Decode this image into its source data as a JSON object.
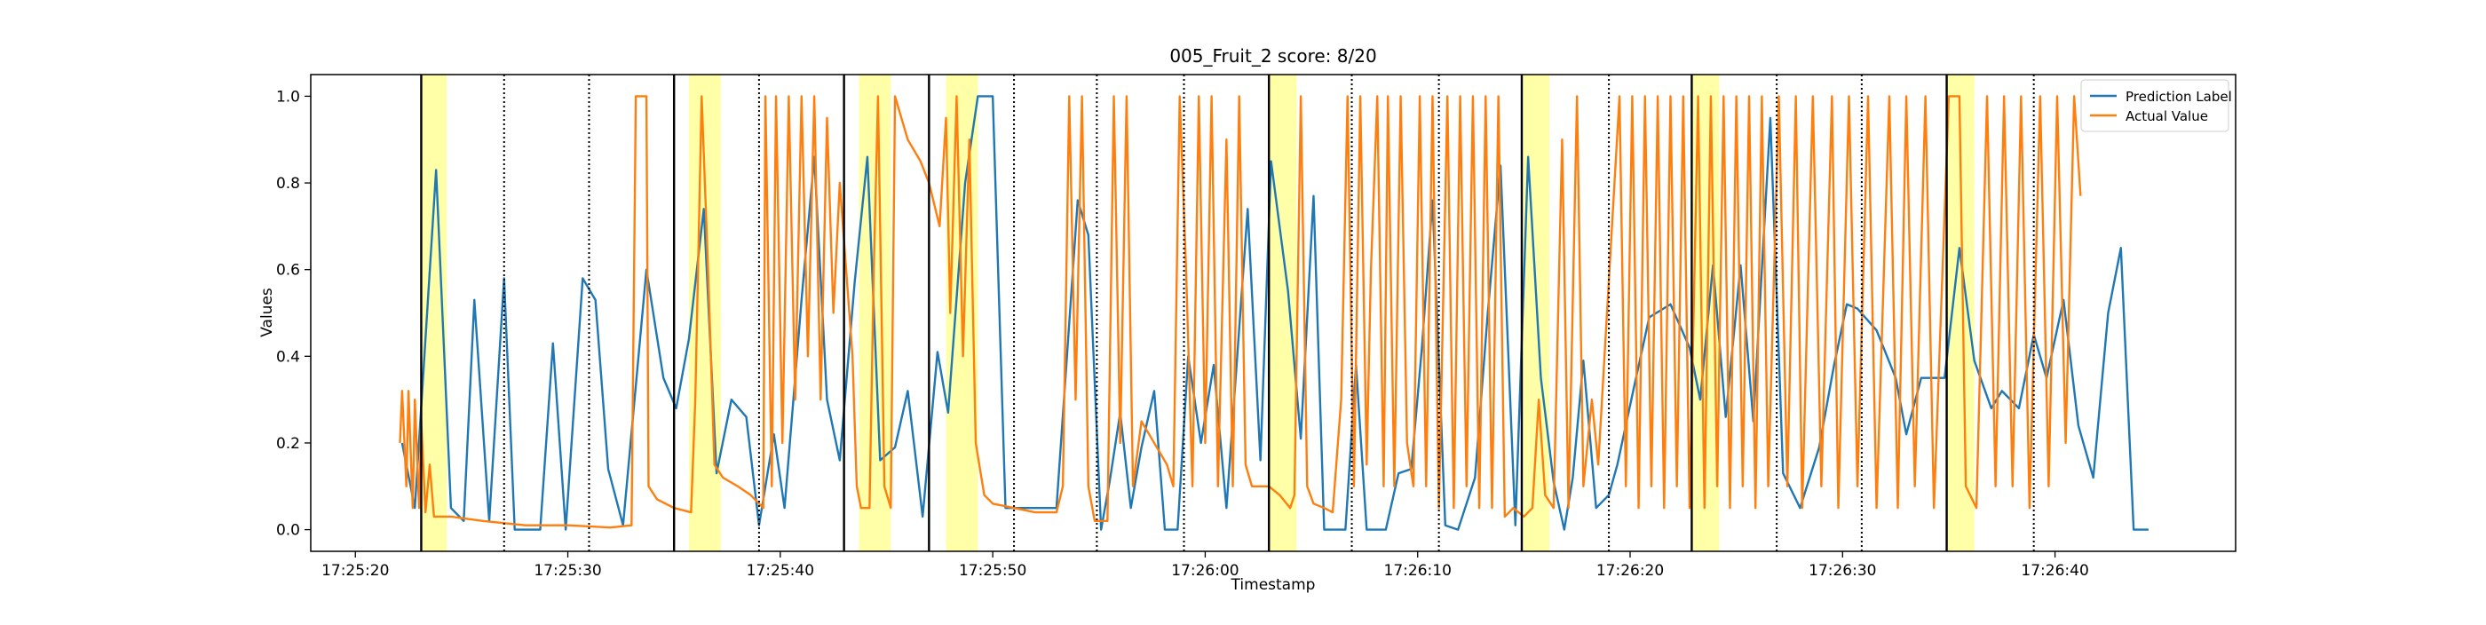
{
  "chart_data": {
    "type": "line",
    "title": "005_Fruit_2 score: 8/20",
    "xlabel": "Timestamp",
    "ylabel": "Values",
    "xlim": [
      "17:25:17.9",
      "17:26:48.5"
    ],
    "xticks": [
      "17:25:20",
      "17:25:30",
      "17:25:40",
      "17:25:50",
      "17:26:00",
      "17:26:10",
      "17:26:20",
      "17:26:30",
      "17:26:40"
    ],
    "ylim": [
      -0.05,
      1.05
    ],
    "yticks": [
      {
        "value": 0,
        "label": "0.0"
      },
      {
        "value": 0.2,
        "label": "0.2"
      },
      {
        "value": 0.4,
        "label": "0.4"
      },
      {
        "value": 0.6,
        "label": "0.6"
      },
      {
        "value": 0.8,
        "label": "0.8"
      },
      {
        "value": 1,
        "label": "1.0"
      }
    ],
    "legend": "upper right",
    "highlight_color": "#ffffa8",
    "spans": [
      [
        "17:25:23.1",
        "17:25:24.3"
      ],
      [
        "17:25:35.7",
        "17:25:37.2"
      ],
      [
        "17:25:43.7",
        "17:25:45.2"
      ],
      [
        "17:25:47.8",
        "17:25:49.3"
      ],
      [
        "17:26:03.0",
        "17:26:04.3"
      ],
      [
        "17:26:14.9",
        "17:26:16.2"
      ],
      [
        "17:26:22.9",
        "17:26:24.2"
      ],
      [
        "17:26:34.9",
        "17:26:36.2"
      ]
    ],
    "solid_lines": [
      "17:25:23.1",
      "17:25:35.0",
      "17:25:43.0",
      "17:25:47.0",
      "17:26:03.0",
      "17:26:14.9",
      "17:26:22.9",
      "17:26:34.9"
    ],
    "dotted_lines": [
      "17:25:27.0",
      "17:25:31.0",
      "17:25:39.0",
      "17:25:51.0",
      "17:25:54.9",
      "17:25:59.0",
      "17:26:06.9",
      "17:26:11.0",
      "17:26:19.0",
      "17:26:26.9",
      "17:26:30.9",
      "17:26:39.0"
    ],
    "series": [
      {
        "name": "Prediction Label",
        "color": "#1f77b4",
        "x": [
          "17:25:22.2",
          "17:25:22.8",
          "17:25:23.8",
          "17:25:24.5",
          "17:25:25.1",
          "17:25:25.6",
          "17:25:26.3",
          "17:25:27.0",
          "17:25:27.5",
          "17:25:28.7",
          "17:25:29.3",
          "17:25:29.9",
          "17:25:30.7",
          "17:25:31.3",
          "17:25:31.9",
          "17:25:32.6",
          "17:25:33.7",
          "17:25:34.5",
          "17:25:35.1",
          "17:25:35.7",
          "17:25:36.4",
          "17:25:37.0",
          "17:25:37.7",
          "17:25:38.4",
          "17:25:39.0",
          "17:25:39.7",
          "17:25:40.2",
          "17:25:41.0",
          "17:25:41.6",
          "17:25:42.2",
          "17:25:42.8",
          "17:25:43.5",
          "17:25:44.1",
          "17:25:44.7",
          "17:25:45.4",
          "17:25:46.0",
          "17:25:46.7",
          "17:25:47.4",
          "17:25:47.9",
          "17:25:48.7",
          "17:25:49.3",
          "17:25:50.0",
          "17:25:50.6",
          "17:25:51.2",
          "17:25:53.0",
          "17:25:54.0",
          "17:25:54.5",
          "17:25:55.1",
          "17:25:55.5",
          "17:25:56.0",
          "17:25:56.5",
          "17:25:57.0",
          "17:25:57.6",
          "17:25:58.1",
          "17:25:58.7",
          "17:25:59.2",
          "17:25:59.8",
          "17:26:00.4",
          "17:26:01.0",
          "17:26:02.0",
          "17:26:02.6",
          "17:26:03.1",
          "17:26:03.9",
          "17:26:04.5",
          "17:26:05.1",
          "17:26:05.6",
          "17:26:06.6",
          "17:26:07.1",
          "17:26:07.6",
          "17:26:08.5",
          "17:26:09.1",
          "17:26:09.7",
          "17:26:10.2",
          "17:26:10.7",
          "17:26:11.3",
          "17:26:11.9",
          "17:26:12.7",
          "17:26:13.3",
          "17:26:13.9",
          "17:26:14.6",
          "17:26:15.2",
          "17:26:15.8",
          "17:26:16.4",
          "17:26:16.9",
          "17:26:17.3",
          "17:26:17.8",
          "17:26:18.4",
          "17:26:19.0",
          "17:26:19.4",
          "17:26:20.1",
          "17:26:20.9",
          "17:26:21.9",
          "17:26:22.8",
          "17:26:23.3",
          "17:26:23.9",
          "17:26:24.5",
          "17:26:25.2",
          "17:26:25.8",
          "17:26:26.6",
          "17:26:27.2",
          "17:26:28.0",
          "17:26:28.9",
          "17:26:29.6",
          "17:26:30.2",
          "17:26:30.7",
          "17:26:31.6",
          "17:26:32.5",
          "17:26:33.0",
          "17:26:33.7",
          "17:26:34.8",
          "17:26:35.5",
          "17:26:36.2",
          "17:26:37.0",
          "17:26:37.5",
          "17:26:38.3",
          "17:26:39.0",
          "17:26:39.6",
          "17:26:40.4",
          "17:26:41.1",
          "17:26:41.8",
          "17:26:42.5",
          "17:26:43.1",
          "17:26:43.7",
          "17:26:44.4"
        ],
        "values": [
          0.2,
          0.05,
          0.83,
          0.05,
          0.02,
          0.53,
          0.02,
          0.58,
          0.0,
          0.0,
          0.43,
          0.0,
          0.58,
          0.53,
          0.14,
          0.01,
          0.6,
          0.35,
          0.28,
          0.44,
          0.74,
          0.13,
          0.3,
          0.26,
          0.01,
          0.22,
          0.05,
          0.53,
          0.86,
          0.3,
          0.16,
          0.57,
          0.86,
          0.16,
          0.19,
          0.32,
          0.03,
          0.41,
          0.27,
          0.8,
          1.0,
          1.0,
          0.05,
          0.05,
          0.05,
          0.76,
          0.68,
          0.0,
          0.11,
          0.27,
          0.05,
          0.19,
          0.32,
          0.0,
          0.0,
          0.4,
          0.2,
          0.38,
          0.05,
          0.74,
          0.16,
          0.85,
          0.55,
          0.21,
          0.77,
          0.0,
          0.0,
          0.38,
          0.0,
          0.0,
          0.13,
          0.14,
          0.42,
          0.76,
          0.01,
          0.0,
          0.12,
          0.5,
          0.84,
          0.01,
          0.86,
          0.35,
          0.11,
          0.0,
          0.12,
          0.39,
          0.05,
          0.08,
          0.15,
          0.31,
          0.49,
          0.52,
          0.42,
          0.3,
          0.61,
          0.26,
          0.61,
          0.25,
          0.95,
          0.13,
          0.05,
          0.19,
          0.38,
          0.52,
          0.51,
          0.46,
          0.35,
          0.22,
          0.35,
          0.35,
          0.65,
          0.39,
          0.28,
          0.32,
          0.28,
          0.45,
          0.35,
          0.53,
          0.24,
          0.12,
          0.5,
          0.65,
          0.0,
          0.0
        ]
      },
      {
        "name": "Actual Value",
        "color": "#ff7f0e",
        "x": [
          "17:25:22.1",
          "17:25:22.2",
          "17:25:22.4",
          "17:25:22.5",
          "17:25:22.7",
          "17:25:22.8",
          "17:25:23.0",
          "17:25:23.1",
          "17:25:23.3",
          "17:25:23.5",
          "17:25:23.7",
          "17:25:24.5",
          "17:25:26.0",
          "17:25:28.0",
          "17:25:30.0",
          "17:25:32.0",
          "17:25:33.0",
          "17:25:33.2",
          "17:25:33.7",
          "17:25:33.8",
          "17:25:34.2",
          "17:25:35.0",
          "17:25:35.8",
          "17:25:36.0",
          "17:25:36.3",
          "17:25:36.6",
          "17:25:36.9",
          "17:25:37.3",
          "17:25:38.0",
          "17:25:38.6",
          "17:25:39.2",
          "17:25:39.3",
          "17:25:39.6",
          "17:25:39.8",
          "17:25:40.1",
          "17:25:40.4",
          "17:25:40.7",
          "17:25:41.0",
          "17:25:41.3",
          "17:25:41.6",
          "17:25:41.9",
          "17:25:42.2",
          "17:25:42.5",
          "17:25:42.8",
          "17:25:43.1",
          "17:25:43.4",
          "17:25:43.6",
          "17:25:43.8",
          "17:25:44.2",
          "17:25:44.4",
          "17:25:44.6",
          "17:25:44.9",
          "17:25:45.2",
          "17:25:45.4",
          "17:25:46.0",
          "17:25:46.6",
          "17:25:47.0",
          "17:25:47.5",
          "17:25:47.8",
          "17:25:48.0",
          "17:25:48.3",
          "17:25:48.6",
          "17:25:48.9",
          "17:25:49.2",
          "17:25:49.6",
          "17:25:50.0",
          "17:25:51.0",
          "17:25:52.0",
          "17:25:53.0",
          "17:25:53.3",
          "17:25:53.6",
          "17:25:53.9",
          "17:25:54.2",
          "17:25:54.5",
          "17:25:54.8",
          "17:25:55.4",
          "17:25:55.7",
          "17:25:56.0",
          "17:25:56.3",
          "17:25:56.6",
          "17:25:57.0",
          "17:25:57.6",
          "17:25:58.2",
          "17:25:58.5",
          "17:25:58.8",
          "17:25:59.1",
          "17:25:59.4",
          "17:25:59.7",
          "17:26:00.0",
          "17:26:00.3",
          "17:26:00.6",
          "17:26:01.0",
          "17:26:01.3",
          "17:26:01.6",
          "17:26:01.9",
          "17:26:02.2",
          "17:26:03.0",
          "17:26:03.5",
          "17:26:04.0",
          "17:26:04.2",
          "17:26:04.5",
          "17:26:04.8",
          "17:26:05.1",
          "17:26:05.6",
          "17:26:06.0",
          "17:26:06.4",
          "17:26:06.7",
          "17:26:07.0",
          "17:26:07.3",
          "17:26:07.6",
          "17:26:07.8",
          "17:26:08.1",
          "17:26:08.4",
          "17:26:08.6",
          "17:26:08.9",
          "17:26:09.2",
          "17:26:09.5",
          "17:26:09.8",
          "17:26:10.1",
          "17:26:10.4",
          "17:26:10.7",
          "17:26:11.0",
          "17:26:11.4",
          "17:26:11.7",
          "17:26:12.0",
          "17:26:12.3",
          "17:26:12.6",
          "17:26:12.9",
          "17:26:13.2",
          "17:26:13.5",
          "17:26:13.8",
          "17:26:14.1",
          "17:26:14.5",
          "17:26:15.0",
          "17:26:15.4",
          "17:26:15.7",
          "17:26:16.0",
          "17:26:16.4",
          "17:26:16.8",
          "17:26:17.1",
          "17:26:17.5",
          "17:26:17.8",
          "17:26:18.2",
          "17:26:18.5",
          "17:26:19.5",
          "17:26:19.8",
          "17:26:20.1",
          "17:26:20.4",
          "17:26:20.7",
          "17:26:21.0",
          "17:26:21.3",
          "17:26:21.6",
          "17:26:21.9",
          "17:26:22.2",
          "17:26:22.5",
          "17:26:22.8",
          "17:26:23.2",
          "17:26:23.5",
          "17:26:23.8",
          "17:26:24.1",
          "17:26:24.4",
          "17:26:24.7",
          "17:26:25.0",
          "17:26:25.3",
          "17:26:25.6",
          "17:26:25.9",
          "17:26:26.2",
          "17:26:26.5",
          "17:26:27.0",
          "17:26:27.4",
          "17:26:27.8",
          "17:26:28.1",
          "17:26:28.6",
          "17:26:29.0",
          "17:26:29.5",
          "17:26:29.8",
          "17:26:30.3",
          "17:26:30.7",
          "17:26:31.2",
          "17:26:31.6",
          "17:26:32.2",
          "17:26:32.6",
          "17:26:33.0",
          "17:26:33.4",
          "17:26:33.9",
          "17:26:34.3",
          "17:26:35.0",
          "17:26:35.5",
          "17:26:35.8",
          "17:26:36.3",
          "17:26:36.8",
          "17:26:37.2",
          "17:26:37.6",
          "17:26:38.0",
          "17:26:38.4",
          "17:26:38.8",
          "17:26:39.3",
          "17:26:39.7",
          "17:26:40.1",
          "17:26:40.5",
          "17:26:40.9",
          "17:26:41.2"
        ],
        "values": [
          0.2,
          0.32,
          0.1,
          0.32,
          0.05,
          0.3,
          0.05,
          0.25,
          0.04,
          0.15,
          0.03,
          0.03,
          0.02,
          0.01,
          0.01,
          0.005,
          0.01,
          1.0,
          1.0,
          0.1,
          0.07,
          0.05,
          0.04,
          0.3,
          1.0,
          0.6,
          0.15,
          0.12,
          0.1,
          0.08,
          0.05,
          1.0,
          0.1,
          1.0,
          0.2,
          1.0,
          0.3,
          1.0,
          0.4,
          1.0,
          0.3,
          0.95,
          0.5,
          0.8,
          0.6,
          0.4,
          0.1,
          0.05,
          0.05,
          0.6,
          1.0,
          0.1,
          0.05,
          1.0,
          0.9,
          0.85,
          0.8,
          0.7,
          0.95,
          0.5,
          1.0,
          0.4,
          0.9,
          0.2,
          0.08,
          0.06,
          0.05,
          0.04,
          0.04,
          0.1,
          1.0,
          0.3,
          1.0,
          0.1,
          0.02,
          0.02,
          1.0,
          0.2,
          1.0,
          0.1,
          0.25,
          0.2,
          0.15,
          0.1,
          1.0,
          0.6,
          0.1,
          1.0,
          0.2,
          1.0,
          0.1,
          0.9,
          0.1,
          1.0,
          0.15,
          0.1,
          0.1,
          0.08,
          0.05,
          0.08,
          1.0,
          0.1,
          0.06,
          0.05,
          0.04,
          0.3,
          1.0,
          0.1,
          1.0,
          0.15,
          0.6,
          1.0,
          0.1,
          1.0,
          0.1,
          1.0,
          0.2,
          0.1,
          1.0,
          0.1,
          1.0,
          0.05,
          1.0,
          0.05,
          1.0,
          0.1,
          1.0,
          0.05,
          1.0,
          0.05,
          1.0,
          0.03,
          0.05,
          0.03,
          0.05,
          0.3,
          0.08,
          0.05,
          0.9,
          0.05,
          1.0,
          0.1,
          0.3,
          0.15,
          1.0,
          0.1,
          1.0,
          0.05,
          1.0,
          0.1,
          1.0,
          0.05,
          1.0,
          0.1,
          1.0,
          0.05,
          1.0,
          0.05,
          1.0,
          0.1,
          1.0,
          0.05,
          1.0,
          0.1,
          1.0,
          0.05,
          1.0,
          0.1,
          1.0,
          0.1,
          1.0,
          0.05,
          1.0,
          0.1,
          1.0,
          0.05,
          1.0,
          0.1,
          1.0,
          0.05,
          1.0,
          0.05,
          1.0,
          0.1,
          1.0,
          0.05,
          1.0,
          1.0,
          0.1,
          0.05,
          1.0,
          0.1,
          1.0,
          0.1,
          1.0,
          0.05,
          1.0,
          0.1,
          1.0,
          0.2,
          1.0,
          0.77
        ]
      }
    ]
  }
}
